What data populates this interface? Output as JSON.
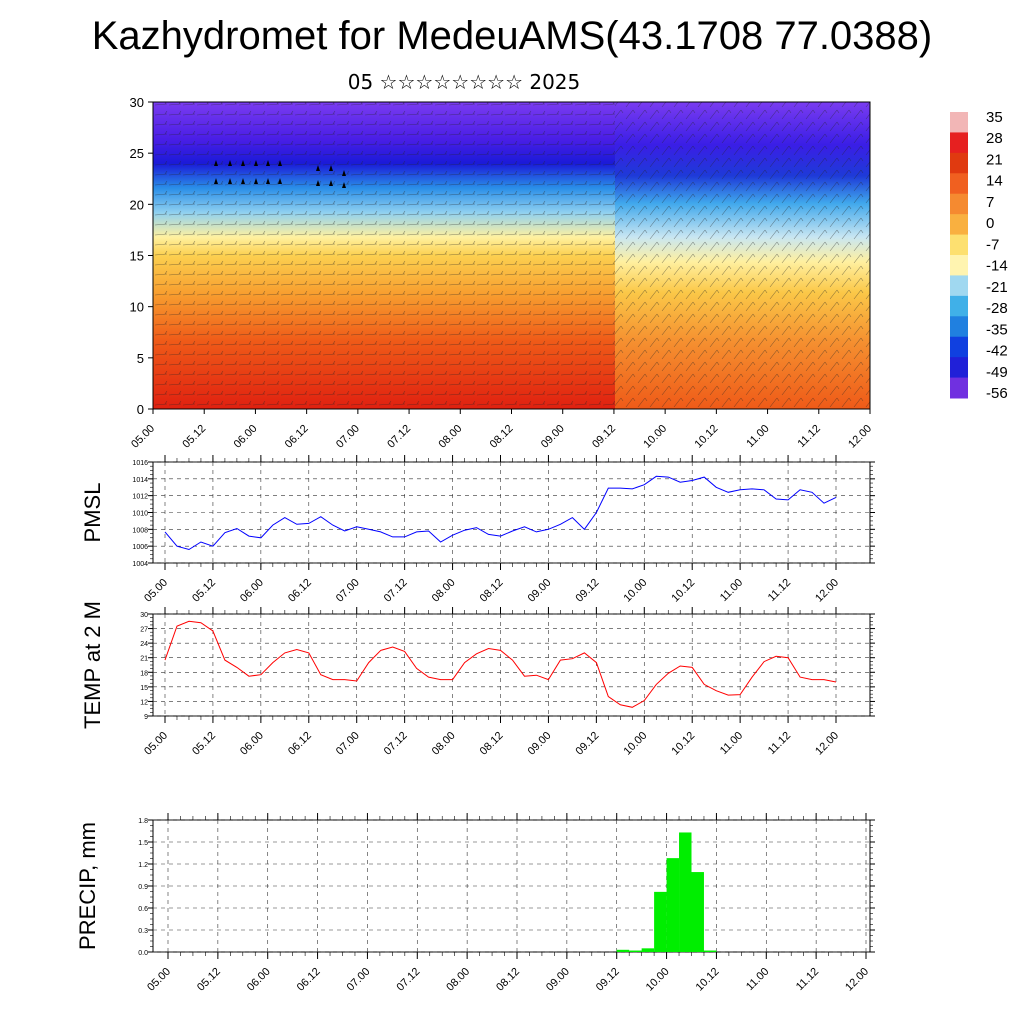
{
  "title": "Kazhydromet for MedeuAMS(43.1708 77.0388)",
  "subtitle": "05 ☆☆☆☆☆☆☆☆ 2025",
  "time_ticks": [
    "05.00",
    "05.12",
    "06.00",
    "06.12",
    "07.00",
    "07.12",
    "08.00",
    "08.12",
    "09.00",
    "09.12",
    "10.00",
    "10.12",
    "11.00",
    "11.12",
    "12.00"
  ],
  "colorbar": {
    "labels": [
      "35",
      "28",
      "21",
      "14",
      "7",
      "0",
      "-7",
      "-14",
      "-21",
      "-28",
      "-35",
      "-42",
      "-49",
      "-56"
    ],
    "colors": [
      "#f2b6b6",
      "#e62020",
      "#e03a10",
      "#f06020",
      "#f58a30",
      "#f9b040",
      "#fde070",
      "#fff4b0",
      "#a0d8f0",
      "#40b0e8",
      "#2080e0",
      "#1040e0",
      "#2020d8",
      "#7030e0"
    ]
  },
  "chart_data": [
    {
      "type": "heatmap",
      "title": "",
      "xlabel": "",
      "ylabel": "",
      "x_ticks": [
        "05.00",
        "05.12",
        "06.00",
        "06.12",
        "07.00",
        "07.12",
        "08.00",
        "08.12",
        "09.00",
        "09.12",
        "10.00",
        "10.12",
        "11.00",
        "11.12",
        "12.00"
      ],
      "y_ticks": [
        0,
        5,
        10,
        15,
        20,
        25,
        30
      ],
      "ylim": [
        0,
        30
      ],
      "colorbar_range": [
        -56,
        35
      ],
      "overlay": "wind barbs"
    },
    {
      "type": "line",
      "ylabel": "PMSL",
      "ylim": [
        1004,
        1016
      ],
      "y_ticks": [
        1004,
        1006,
        1008,
        1010,
        1012,
        1014,
        1016
      ],
      "x_ticks": [
        "05.00",
        "05.12",
        "06.00",
        "06.12",
        "07.00",
        "07.12",
        "08.00",
        "08.12",
        "09.00",
        "09.12",
        "10.00",
        "10.12",
        "11.00",
        "11.12",
        "12.00"
      ],
      "color": "#0000ff",
      "grid": true,
      "values": [
        1007.7,
        1006.0,
        1005.6,
        1006.5,
        1006.0,
        1007.6,
        1008.1,
        1007.2,
        1007.0,
        1008.5,
        1009.4,
        1008.6,
        1008.7,
        1009.5,
        1008.5,
        1007.8,
        1008.3,
        1008.0,
        1007.7,
        1007.1,
        1007.1,
        1007.7,
        1007.8,
        1006.5,
        1007.3,
        1007.9,
        1008.2,
        1007.4,
        1007.2,
        1007.8,
        1008.3,
        1007.7,
        1008.0,
        1008.6,
        1009.4,
        1008.0,
        1010.0,
        1012.9,
        1012.9,
        1012.8,
        1013.3,
        1014.3,
        1014.2,
        1013.6,
        1013.8,
        1014.2,
        1013.0,
        1012.4,
        1012.7,
        1012.8,
        1012.7,
        1011.6,
        1011.5,
        1012.7,
        1012.4,
        1011.1,
        1011.8
      ]
    },
    {
      "type": "line",
      "ylabel": "TEMP at 2 M",
      "ylim": [
        9,
        30
      ],
      "y_ticks": [
        9,
        12,
        15,
        18,
        21,
        24,
        27,
        30
      ],
      "x_ticks": [
        "05.00",
        "05.12",
        "06.00",
        "06.12",
        "07.00",
        "07.12",
        "08.00",
        "08.12",
        "09.00",
        "09.12",
        "10.00",
        "10.12",
        "11.00",
        "11.12",
        "12.00"
      ],
      "color": "#ff0000",
      "grid": true,
      "values": [
        20.5,
        27.5,
        28.5,
        28.2,
        26.5,
        20.5,
        19.0,
        17.2,
        17.5,
        20.0,
        22.0,
        22.7,
        22.0,
        17.5,
        16.5,
        16.5,
        16.2,
        20.0,
        22.5,
        23.2,
        22.3,
        18.8,
        17.0,
        16.5,
        16.5,
        20.0,
        21.8,
        22.9,
        22.5,
        20.5,
        17.2,
        17.4,
        16.5,
        20.5,
        20.8,
        22.0,
        20.0,
        13.0,
        11.3,
        10.8,
        12.2,
        15.5,
        17.8,
        19.3,
        19.0,
        15.5,
        14.2,
        13.3,
        13.4,
        17.0,
        20.2,
        21.3,
        21.0,
        17.0,
        16.5,
        16.5,
        16.0
      ]
    },
    {
      "type": "bar",
      "ylabel": "PRECIP, mm",
      "ylim": [
        0,
        1.8
      ],
      "y_ticks": [
        "0.0",
        "0.3",
        "0.6",
        "0.9",
        "1.2",
        "1.5",
        "1.8"
      ],
      "x_ticks": [
        "05.00",
        "05.12",
        "06.00",
        "06.12",
        "07.00",
        "07.12",
        "08.00",
        "08.12",
        "09.00",
        "09.12",
        "10.00",
        "10.12",
        "11.00",
        "11.12",
        "12.00"
      ],
      "color": "#00ee00",
      "grid": true,
      "values": [
        0,
        0,
        0,
        0,
        0,
        0,
        0,
        0,
        0,
        0,
        0,
        0,
        0,
        0,
        0,
        0,
        0,
        0,
        0,
        0,
        0,
        0,
        0,
        0,
        0,
        0,
        0,
        0,
        0,
        0,
        0,
        0,
        0,
        0,
        0,
        0,
        0.03,
        0.02,
        0.05,
        0.82,
        1.28,
        1.63,
        1.09,
        0.02,
        0,
        0,
        0,
        0,
        0,
        0,
        0,
        0,
        0,
        0,
        0,
        0,
        0
      ]
    }
  ]
}
